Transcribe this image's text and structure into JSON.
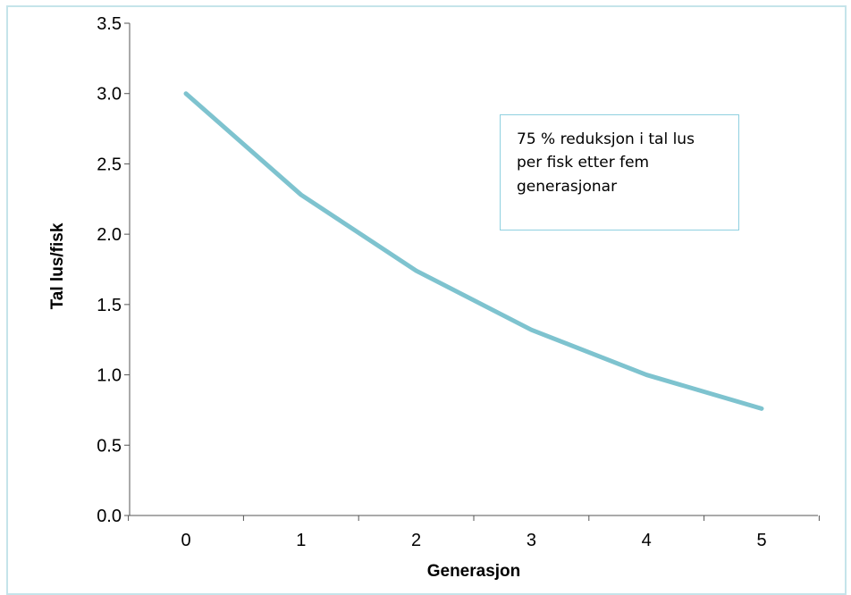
{
  "chart_data": {
    "type": "line",
    "x": [
      0,
      1,
      2,
      3,
      4,
      5
    ],
    "series": [
      {
        "values": [
          3.0,
          2.28,
          1.74,
          1.32,
          1.0,
          0.76
        ],
        "color": "#7ec3cf"
      }
    ],
    "xlabel": "Generasjon",
    "ylabel": "Tal lus/fisk",
    "xticks": [
      "0",
      "1",
      "2",
      "3",
      "4",
      "5"
    ],
    "yticks": [
      "0.0",
      "0.5",
      "1.0",
      "1.5",
      "2.0",
      "2.5",
      "3.0",
      "3.5"
    ],
    "ylim": [
      0,
      3.5
    ],
    "grid": false,
    "annotation": "75 % reduksjon i tal lus per fisk etter fem generasjonar"
  },
  "colors": {
    "frame_border": "#c5e4ea",
    "annotation_border": "#8fd0e0",
    "axis": "#555555",
    "line": "#7ec3cf"
  }
}
